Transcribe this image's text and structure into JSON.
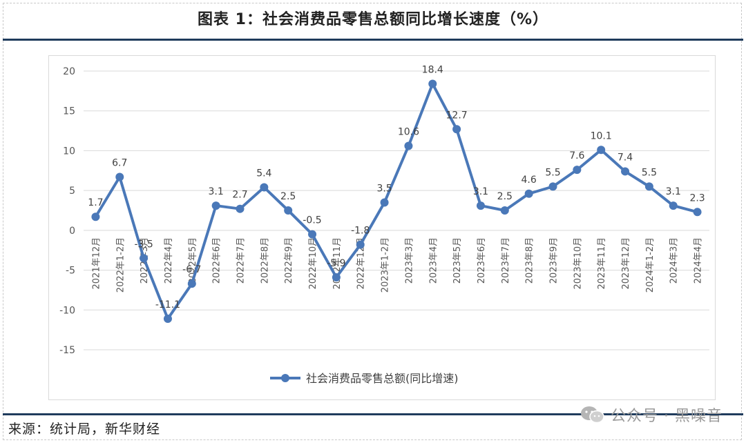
{
  "title": "图表 1：社会消费品零售总额同比增长速度（%）",
  "source": "来源：统计局，新华财经",
  "watermark": {
    "text": "公众号 · 黑噪音",
    "icon": "wechat-icon"
  },
  "colors": {
    "series": "#4a78b8",
    "grid": "#d9d9d9",
    "axis_text": "#555555",
    "rule": "#1f3b5c"
  },
  "chart_data": {
    "type": "line",
    "categories": [
      "2021年12月",
      "2022年1-2月",
      "2022年3月",
      "2022年4月",
      "2022年5月",
      "2022年6月",
      "2022年7月",
      "2022年8月",
      "2022年9月",
      "2022年10月",
      "2022年11月",
      "2022年12月",
      "2023年1-2月",
      "2023年3月",
      "2023年4月",
      "2023年5月",
      "2023年6月",
      "2023年7月",
      "2023年8月",
      "2023年9月",
      "2023年10月",
      "2023年11月",
      "2023年12月",
      "2024年1-2月",
      "2024年3月",
      "2024年4月"
    ],
    "series": [
      {
        "name": "社会消费品零售总额(同比增速)",
        "values": [
          1.7,
          6.7,
          -3.5,
          -11.1,
          -6.7,
          3.1,
          2.7,
          5.4,
          2.5,
          -0.5,
          -5.9,
          -1.8,
          3.5,
          10.6,
          18.4,
          12.7,
          3.1,
          2.5,
          4.6,
          5.5,
          7.6,
          10.1,
          7.4,
          5.5,
          3.1,
          2.3
        ]
      }
    ],
    "ylim": [
      -15,
      20
    ],
    "yticks": [
      20,
      15,
      10,
      5,
      0,
      -5,
      -10,
      -15
    ],
    "grid": true,
    "legend": "bottom",
    "title": "",
    "xlabel": "",
    "ylabel": ""
  }
}
